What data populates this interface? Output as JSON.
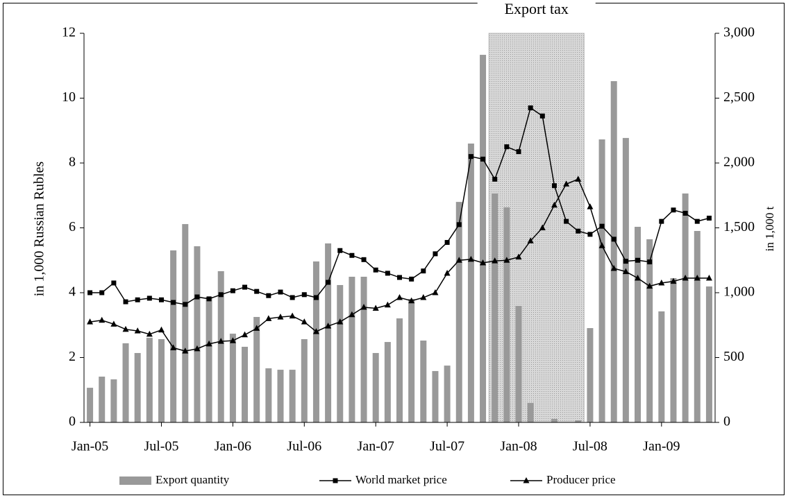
{
  "chart_data": {
    "type": "combo",
    "annotation": {
      "text": "Export tax",
      "from": 33.5,
      "to": 41.5
    },
    "y_label": "in 1,000 Russian Rubles",
    "y2_label": "in 1,000 t",
    "categories": [
      "Jan-05",
      null,
      null,
      null,
      null,
      null,
      "Jul-05",
      null,
      null,
      null,
      null,
      null,
      "Jan-06",
      null,
      null,
      null,
      null,
      null,
      "Jul-06",
      null,
      null,
      null,
      null,
      null,
      "Jan-07",
      null,
      null,
      null,
      null,
      null,
      "Jul-07",
      null,
      null,
      null,
      null,
      null,
      "Jan-08",
      null,
      null,
      null,
      null,
      null,
      "Jul-08",
      null,
      null,
      null,
      null,
      null,
      "Jan-09",
      null,
      null,
      null,
      null
    ],
    "ylim": [
      0,
      12
    ],
    "yticks": [
      0,
      2,
      4,
      6,
      8,
      10,
      12
    ],
    "y2lim": [
      0,
      3000
    ],
    "y2ticks": [
      0,
      500,
      {
        "value": 1000,
        "label": "1,000"
      },
      {
        "value": 1500,
        "label": "1,500"
      },
      {
        "value": 2000,
        "label": "2,000"
      },
      {
        "value": 2500,
        "label": "2,500"
      },
      {
        "value": 3000,
        "label": "3,000"
      }
    ],
    "legend": "bottom",
    "series": [
      {
        "name": "Export quantity",
        "kind": "bar",
        "axis": "y2",
        "color": "#999999",
        "values": [
          267,
          353,
          332,
          610,
          535,
          652,
          642,
          1326,
          1529,
          1358,
          968,
          1166,
          684,
          583,
          813,
          417,
          406,
          406,
          642,
          1241,
          1380,
          1059,
          1123,
          1123,
          535,
          620,
          802,
          952,
          631,
          396,
          438,
          1700,
          2150,
          2834,
          1765,
          1658,
          898,
          150,
          0,
          27,
          0,
          16,
          727,
          2182,
          2631,
          2193,
          1508,
          1412,
          856,
          1112,
          1765,
          1476,
          1048
        ]
      },
      {
        "name": "World market price",
        "kind": "line",
        "marker": "square",
        "color": "#000000",
        "values": [
          4.0,
          4.0,
          4.3,
          3.72,
          3.78,
          3.83,
          3.78,
          3.7,
          3.64,
          3.87,
          3.81,
          3.94,
          4.06,
          4.17,
          4.04,
          3.91,
          4.02,
          3.85,
          3.94,
          3.85,
          4.32,
          5.3,
          5.15,
          5.02,
          4.7,
          4.6,
          4.47,
          4.42,
          4.67,
          5.2,
          5.55,
          6.1,
          8.2,
          8.12,
          7.5,
          8.5,
          8.35,
          9.7,
          9.45,
          7.3,
          6.2,
          5.9,
          5.8,
          6.05,
          5.65,
          4.97,
          5.0,
          4.95,
          6.2,
          6.55,
          6.45,
          6.2,
          6.3
        ]
      },
      {
        "name": "Producer price",
        "kind": "line",
        "marker": "triangle",
        "color": "#000000",
        "values": [
          3.1,
          3.15,
          3.03,
          2.87,
          2.82,
          2.72,
          2.85,
          2.3,
          2.2,
          2.27,
          2.42,
          2.5,
          2.52,
          2.7,
          2.9,
          3.2,
          3.25,
          3.28,
          3.1,
          2.8,
          2.97,
          3.1,
          3.32,
          3.55,
          3.52,
          3.62,
          3.85,
          3.75,
          3.85,
          4.0,
          4.6,
          5.0,
          5.03,
          4.92,
          4.98,
          5.0,
          5.1,
          5.6,
          6.0,
          6.7,
          7.35,
          7.5,
          6.65,
          5.45,
          4.75,
          4.65,
          4.45,
          4.2,
          4.3,
          4.35,
          4.45,
          4.45,
          4.45
        ]
      }
    ]
  }
}
